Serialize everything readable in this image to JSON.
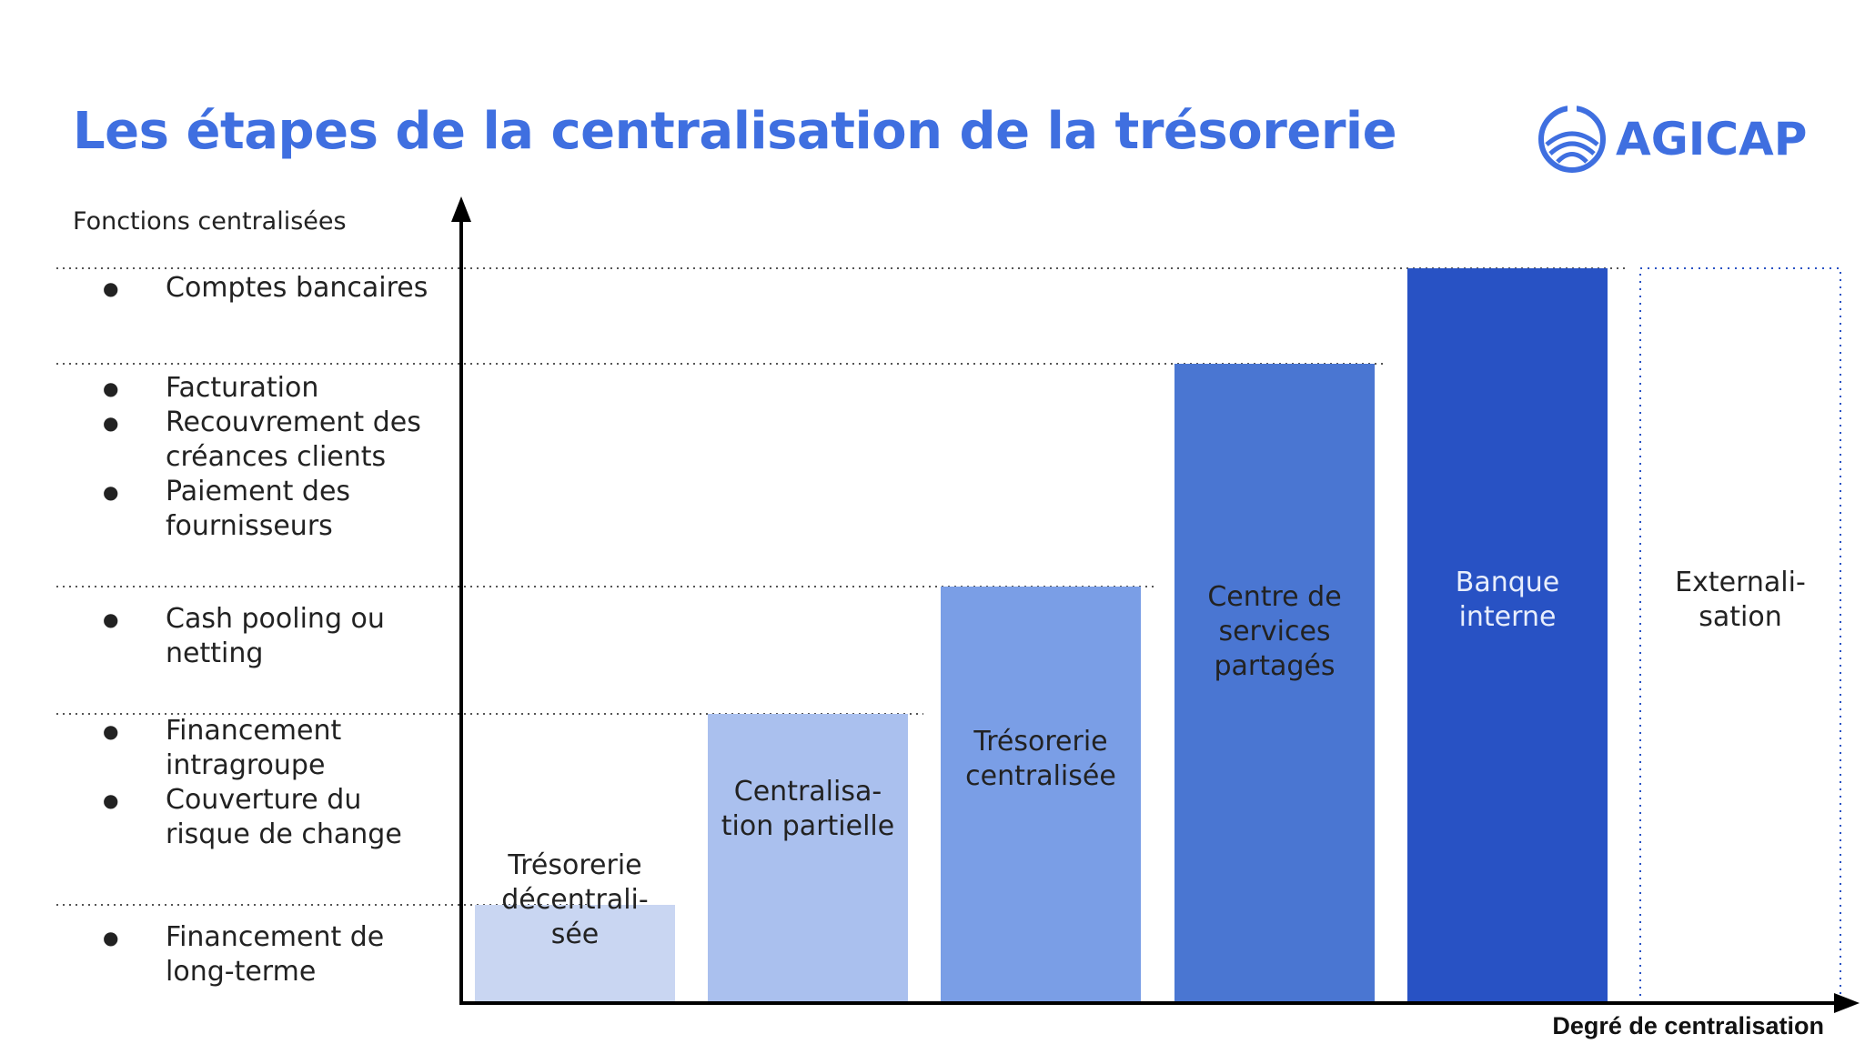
{
  "header": {
    "title": "Les étapes de la centralisation de la trésorerie",
    "logo_text": "AGICAP"
  },
  "colors": {
    "accent": "#3f6fe0",
    "bar_1": "#c9d6f2",
    "bar_2": "#aac0ee",
    "bar_3": "#7a9ee6",
    "bar_4": "#4a76d2",
    "bar_5": "#2852c4",
    "axis": "#000000"
  },
  "axes": {
    "y_title": "Fonctions centralisées",
    "x_title": "Degré de centralisation"
  },
  "functions": [
    {
      "items": [
        "Comptes bancaires"
      ]
    },
    {
      "items": [
        "Facturation",
        "Recouvrement des créances clients",
        "Paiement des fournisseurs"
      ]
    },
    {
      "items": [
        "Cash pooling ou netting"
      ]
    },
    {
      "items": [
        "Financement intragroupe",
        "Couverture du risque de change"
      ]
    },
    {
      "items": [
        "Financement de long-terme"
      ]
    }
  ],
  "chart_data": {
    "type": "bar",
    "categories": [
      "Trésorerie décentrali-sée",
      "Centralisa-tion partielle",
      "Trésorerie centralisée",
      "Centre de services partagés",
      "Banque interne",
      "Externali-sation"
    ],
    "values": [
      1,
      2,
      3,
      4,
      5,
      5
    ],
    "ylim": [
      0,
      5
    ],
    "grid": true
  }
}
